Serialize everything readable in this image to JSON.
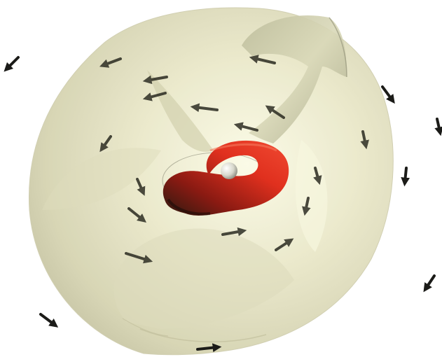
{
  "scene": {
    "background_color": "#ffffff",
    "isosurface_color": "#ece9c8",
    "isosurface_shadow_color": "#bdbc98",
    "vortex_tube_color": "#d8281c",
    "vortex_tube_dark_color": "#3a1a12",
    "center_sphere_color": "#d8d8cc",
    "arrow_color": "#1b1b18",
    "arrow_inside_color": "#2a2a20",
    "arrow_icon": "vector-arrow-icon",
    "sphere_icon": "center-sphere-icon"
  }
}
